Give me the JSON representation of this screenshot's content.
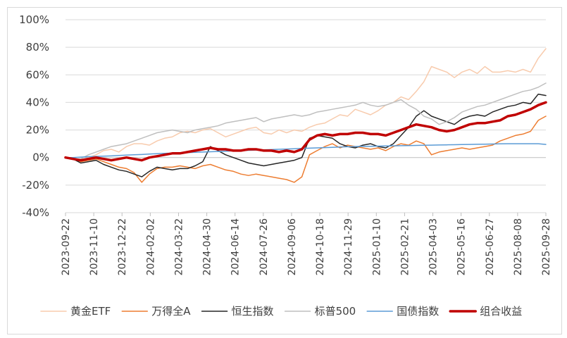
{
  "chart_data": {
    "type": "line",
    "title": "",
    "xlabel": "",
    "ylabel": "",
    "ylim": [
      -40,
      100
    ],
    "y_ticks": [
      -40,
      -20,
      0,
      20,
      40,
      60,
      80,
      100
    ],
    "y_tick_labels": [
      "-40%",
      "-20%",
      "0%",
      "20%",
      "40%",
      "60%",
      "80%",
      "100%"
    ],
    "x_tick_labels": [
      "2023-09-22",
      "2023-11-10",
      "2023-12-22",
      "2024-02-02",
      "2024-03-22",
      "2024-04-30",
      "2024-06-14",
      "2024-07-26",
      "2024-09-06",
      "2024-10-18",
      "2024-11-29",
      "2025-01-10",
      "2025-02-21",
      "2025-04-03",
      "2025-05-16",
      "2025-06-27",
      "2025-08-08",
      "2025-09-28"
    ],
    "grid": "horizontal",
    "legend_position": "bottom",
    "series": [
      {
        "name": "黄金ETF",
        "color": "#F8CBAD",
        "width": 1.5,
        "values": [
          0,
          -1,
          -3,
          0,
          2,
          5,
          6,
          4,
          8,
          10,
          10,
          9,
          12,
          14,
          15,
          18,
          19,
          18,
          20,
          21,
          18,
          15,
          17,
          19,
          21,
          22,
          18,
          17,
          20,
          18,
          20,
          19,
          22,
          24,
          25,
          28,
          31,
          30,
          35,
          33,
          31,
          34,
          38,
          40,
          44,
          42,
          48,
          55,
          66,
          64,
          62,
          58,
          62,
          64,
          61,
          66,
          62,
          62,
          63,
          62,
          64,
          62,
          72,
          79
        ]
      },
      {
        "name": "万得全A",
        "color": "#ED7D31",
        "width": 1.5,
        "values": [
          0,
          -1,
          -3,
          -2,
          -1,
          -3,
          -5,
          -7,
          -8,
          -11,
          -18,
          -12,
          -8,
          -7,
          -7,
          -6,
          -7,
          -8,
          -6,
          -5,
          -7,
          -9,
          -10,
          -12,
          -13,
          -12,
          -13,
          -14,
          -15,
          -16,
          -18,
          -14,
          2,
          5,
          8,
          10,
          7,
          9,
          8,
          7,
          6,
          7,
          5,
          8,
          10,
          9,
          12,
          10,
          2,
          4,
          5,
          6,
          7,
          6,
          7,
          8,
          9,
          12,
          14,
          16,
          17,
          19,
          27,
          30
        ]
      },
      {
        "name": "恒生指数",
        "color": "#262626",
        "width": 1.5,
        "values": [
          0,
          -1,
          -4,
          -3,
          -2,
          -5,
          -7,
          -9,
          -10,
          -12,
          -14,
          -10,
          -7,
          -8,
          -9,
          -8,
          -8,
          -6,
          -3,
          8,
          5,
          2,
          0,
          -2,
          -4,
          -5,
          -6,
          -5,
          -4,
          -3,
          -2,
          0,
          14,
          16,
          15,
          14,
          10,
          8,
          7,
          9,
          10,
          8,
          7,
          10,
          16,
          22,
          30,
          34,
          30,
          28,
          26,
          24,
          28,
          30,
          31,
          30,
          33,
          35,
          37,
          38,
          40,
          39,
          46,
          45
        ]
      },
      {
        "name": "标普500",
        "color": "#BFBFBF",
        "width": 1.5,
        "values": [
          0,
          -1,
          -1,
          2,
          4,
          6,
          8,
          9,
          10,
          12,
          14,
          16,
          18,
          19,
          20,
          19,
          18,
          20,
          21,
          22,
          23,
          25,
          26,
          27,
          28,
          29,
          26,
          28,
          29,
          30,
          31,
          30,
          31,
          33,
          34,
          35,
          36,
          37,
          38,
          40,
          38,
          37,
          38,
          40,
          42,
          38,
          35,
          30,
          28,
          24,
          26,
          29,
          33,
          35,
          37,
          38,
          40,
          42,
          44,
          46,
          48,
          49,
          51,
          54
        ]
      },
      {
        "name": "国债指数",
        "color": "#5B9BD5",
        "width": 1.5,
        "values": [
          0,
          0,
          0.3,
          0.6,
          0.8,
          1,
          1.2,
          1.5,
          1.8,
          2,
          2.2,
          2.5,
          2.8,
          3,
          3.2,
          3.4,
          3.6,
          3.8,
          4,
          4.2,
          4.4,
          4.6,
          4.8,
          5,
          5.2,
          5.4,
          5.6,
          5.8,
          6,
          6.2,
          6.4,
          6.6,
          6.8,
          7,
          7.2,
          7.4,
          7.6,
          7.8,
          8,
          8.1,
          8.2,
          8.3,
          8.4,
          8.5,
          8.6,
          8.7,
          8.8,
          8.9,
          9,
          9.1,
          9.2,
          9.3,
          9.4,
          9.5,
          9.6,
          9.7,
          9.8,
          9.9,
          10,
          10,
          10,
          10,
          10,
          9.5
        ]
      },
      {
        "name": "组合收益",
        "color": "#C00000",
        "width": 3.5,
        "values": [
          0,
          -1,
          -2,
          -1,
          0,
          -1,
          -2,
          -1,
          0,
          -1,
          -2,
          0,
          1,
          2,
          3,
          3,
          4,
          5,
          6,
          7,
          6,
          6,
          5,
          5,
          6,
          6,
          5,
          5,
          4,
          5,
          4,
          6,
          13,
          16,
          17,
          16,
          17,
          17,
          18,
          18,
          17,
          17,
          16,
          18,
          20,
          22,
          24,
          23,
          22,
          20,
          19,
          20,
          22,
          24,
          25,
          25,
          26,
          27,
          30,
          31,
          33,
          35,
          38,
          40
        ]
      }
    ]
  }
}
